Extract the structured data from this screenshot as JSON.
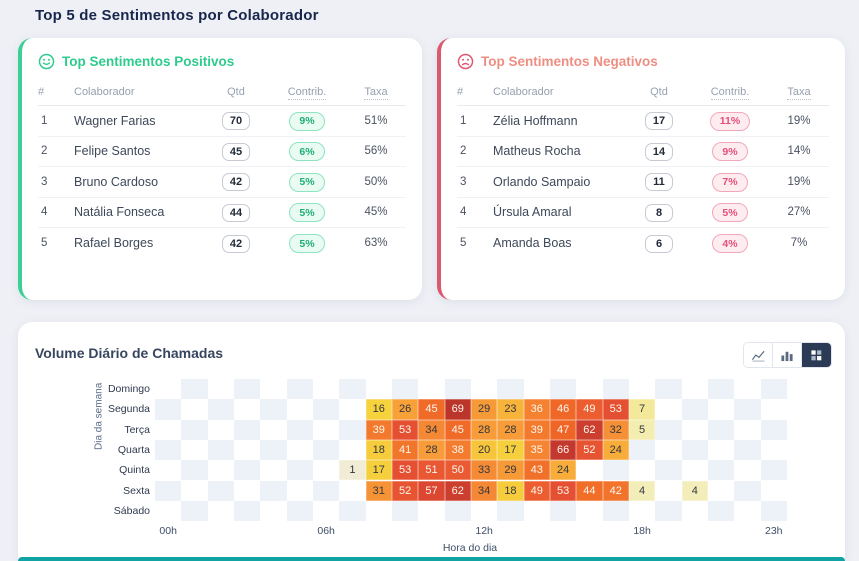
{
  "page": {
    "title": "Top 5 de Sentimentos por Colaborador"
  },
  "columns": {
    "rank": "#",
    "name": "Colaborador",
    "qtd": "Qtd",
    "contrib": "Contrib.",
    "taxa": "Taxa"
  },
  "positive_card": {
    "title": "Top Sentimentos Positivos",
    "icon": "smiley-face-icon",
    "accent": "#2ecb8e",
    "rows": [
      {
        "rank": "1",
        "name": "Wagner Farias",
        "qtd": "70",
        "contrib": "9%",
        "taxa": "51%"
      },
      {
        "rank": "2",
        "name": "Felipe Santos",
        "qtd": "45",
        "contrib": "6%",
        "taxa": "56%"
      },
      {
        "rank": "3",
        "name": "Bruno Cardoso",
        "qtd": "42",
        "contrib": "5%",
        "taxa": "50%"
      },
      {
        "rank": "4",
        "name": "Natália Fonseca",
        "qtd": "44",
        "contrib": "5%",
        "taxa": "45%"
      },
      {
        "rank": "5",
        "name": "Rafael Borges",
        "qtd": "42",
        "contrib": "5%",
        "taxa": "63%"
      }
    ]
  },
  "negative_card": {
    "title": "Top Sentimentos Negativos",
    "icon": "sad-face-icon",
    "accent": "#d95a6e",
    "rows": [
      {
        "rank": "1",
        "name": "Zélia Hoffmann",
        "qtd": "17",
        "contrib": "11%",
        "taxa": "19%"
      },
      {
        "rank": "2",
        "name": "Matheus Rocha",
        "qtd": "14",
        "contrib": "9%",
        "taxa": "14%"
      },
      {
        "rank": "3",
        "name": "Orlando Sampaio",
        "qtd": "11",
        "contrib": "7%",
        "taxa": "19%"
      },
      {
        "rank": "4",
        "name": "Úrsula Amaral",
        "qtd": "8",
        "contrib": "5%",
        "taxa": "27%"
      },
      {
        "rank": "5",
        "name": "Amanda Boas",
        "qtd": "6",
        "contrib": "4%",
        "taxa": "7%"
      }
    ]
  },
  "heatmap_card": {
    "title": "Volume Diário de Chamadas",
    "toolbar": [
      {
        "icon": "line-chart-icon",
        "active": false
      },
      {
        "icon": "bar-chart-icon",
        "active": false
      },
      {
        "icon": "heatmap-icon",
        "active": true
      }
    ]
  },
  "chart_data": {
    "type": "heatmap",
    "title": "Volume Diário de Chamadas",
    "xlabel": "Hora do dia",
    "ylabel": "Dia da semana",
    "x_ticks": [
      {
        "label": "00h",
        "hour": 0
      },
      {
        "label": "06h",
        "hour": 6
      },
      {
        "label": "12h",
        "hour": 12
      },
      {
        "label": "18h",
        "hour": 18
      },
      {
        "label": "23h",
        "hour": 23
      }
    ],
    "hours_range": [
      0,
      23
    ],
    "days": [
      "Domingo",
      "Segunda",
      "Terça",
      "Quarta",
      "Quinta",
      "Sexta",
      "Sábado"
    ],
    "values": {
      "Domingo": {},
      "Segunda": {
        "8": 16,
        "9": 26,
        "10": 45,
        "11": 69,
        "12": 29,
        "13": 23,
        "14": 36,
        "15": 46,
        "16": 49,
        "17": 53,
        "18": 7
      },
      "Terça": {
        "8": 39,
        "9": 53,
        "10": 34,
        "11": 45,
        "12": 28,
        "13": 28,
        "14": 39,
        "15": 47,
        "16": 62,
        "17": 32,
        "18": 5
      },
      "Quarta": {
        "8": 18,
        "9": 41,
        "10": 28,
        "11": 38,
        "12": 20,
        "13": 17,
        "14": 35,
        "15": 66,
        "16": 52,
        "17": 24
      },
      "Quinta": {
        "7": 1,
        "8": 17,
        "9": 53,
        "10": 51,
        "11": 50,
        "12": 33,
        "13": 29,
        "14": 43,
        "15": 24
      },
      "Sexta": {
        "8": 31,
        "9": 52,
        "10": 57,
        "11": 62,
        "12": 34,
        "13": 18,
        "14": 49,
        "15": 53,
        "16": 44,
        "17": 42,
        "18": 4,
        "20": 4
      },
      "Sábado": {}
    },
    "color_scale": {
      "stops": [
        {
          "v": 1,
          "c": "#f1ecd5"
        },
        {
          "v": 5,
          "c": "#f3edb0"
        },
        {
          "v": 10,
          "c": "#f5e37a"
        },
        {
          "v": 16,
          "c": "#f6d23d"
        },
        {
          "v": 21,
          "c": "#f7c23b"
        },
        {
          "v": 25,
          "c": "#f8a43a"
        },
        {
          "v": 30,
          "c": "#f69737"
        },
        {
          "v": 34,
          "c": "#f58834"
        },
        {
          "v": 38,
          "c": "#f47c2e"
        },
        {
          "v": 43,
          "c": "#f1712a"
        },
        {
          "v": 47,
          "c": "#ef6526"
        },
        {
          "v": 50,
          "c": "#ea5b33"
        },
        {
          "v": 54,
          "c": "#e44c31"
        },
        {
          "v": 58,
          "c": "#d84530"
        },
        {
          "v": 63,
          "c": "#c93c2e"
        },
        {
          "v": 69,
          "c": "#bc352b"
        }
      ],
      "light_text_threshold": 35
    },
    "background_checker_color": "#edf1f8"
  }
}
